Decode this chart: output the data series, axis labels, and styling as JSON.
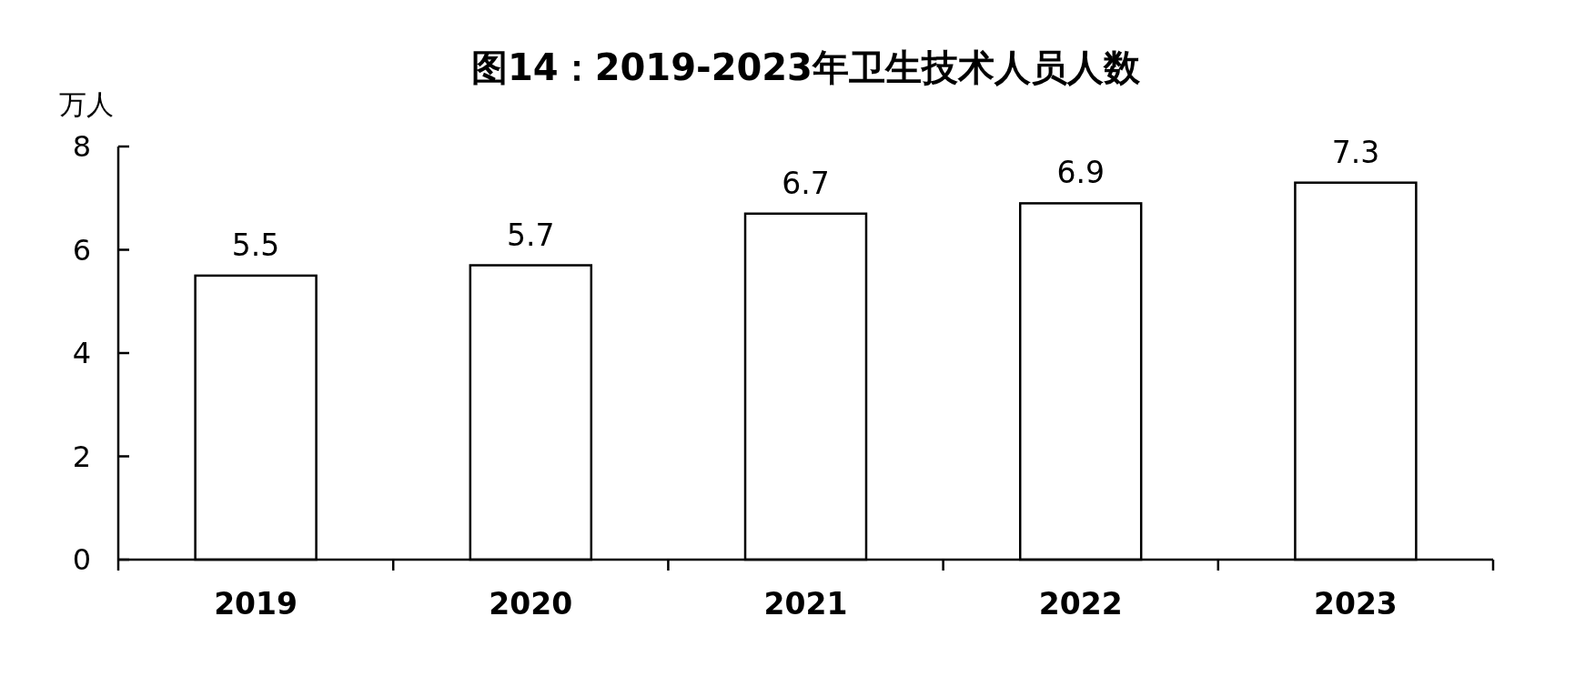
{
  "chart_data": {
    "type": "bar",
    "title": "图14：2019-2023年卫生技术人员人数",
    "ylabel": "万人",
    "categories": [
      "2019",
      "2020",
      "2021",
      "2022",
      "2023"
    ],
    "values": [
      5.5,
      5.7,
      6.7,
      6.9,
      7.3
    ],
    "color": "#ffffff",
    "ylim": [
      0,
      8
    ],
    "yticks": [
      0,
      2,
      4,
      6,
      8
    ],
    "data_labels": true
  }
}
